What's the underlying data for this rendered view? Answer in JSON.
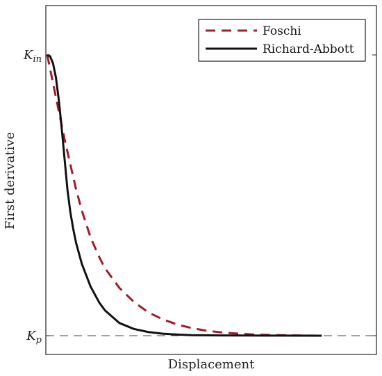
{
  "chart_data": {
    "type": "line",
    "title": "",
    "xlabel": "Displacement",
    "ylabel": "First derivative",
    "xlim": [
      0,
      1
    ],
    "ylim": [
      0,
      1.1
    ],
    "grid": false,
    "legend_position": "top-right",
    "y_ticks": [
      {
        "label_base": "K",
        "label_sub": "in",
        "value": 1.0
      },
      {
        "label_base": "K",
        "label_sub": "p",
        "value": 0.0
      }
    ],
    "reference_line": {
      "value": 0.0,
      "style": "dashed",
      "color": "#444444"
    },
    "series": [
      {
        "name": "Foschi",
        "color": "#a51a2b",
        "dash": "dashed",
        "x": [
          0,
          0.02,
          0.04,
          0.06,
          0.08,
          0.1,
          0.12,
          0.15,
          0.18,
          0.2,
          0.25,
          0.3,
          0.35,
          0.4,
          0.45,
          0.5,
          0.55,
          0.6,
          0.65,
          0.7,
          0.75,
          0.8,
          0.85,
          0.9,
          0.95
        ],
        "values": [
          1.0,
          0.9,
          0.8,
          0.7,
          0.61,
          0.52,
          0.445,
          0.35,
          0.28,
          0.24,
          0.17,
          0.12,
          0.083,
          0.058,
          0.04,
          0.027,
          0.018,
          0.012,
          0.008,
          0.005,
          0.003,
          0.002,
          0.001,
          0.0005,
          0.0
        ]
      },
      {
        "name": "Richard-Abbott",
        "color": "#111111",
        "dash": "solid",
        "x": [
          0,
          0.01,
          0.02,
          0.03,
          0.04,
          0.05,
          0.06,
          0.07,
          0.08,
          0.09,
          0.1,
          0.12,
          0.15,
          0.18,
          0.2,
          0.25,
          0.3,
          0.35,
          0.4,
          0.45,
          0.5,
          0.6,
          0.7,
          0.8,
          0.95
        ],
        "values": [
          1.0,
          0.995,
          0.97,
          0.92,
          0.84,
          0.74,
          0.63,
          0.52,
          0.44,
          0.38,
          0.33,
          0.255,
          0.175,
          0.118,
          0.09,
          0.045,
          0.024,
          0.013,
          0.007,
          0.004,
          0.002,
          0.001,
          0.0005,
          0.0002,
          0.0
        ]
      }
    ]
  }
}
